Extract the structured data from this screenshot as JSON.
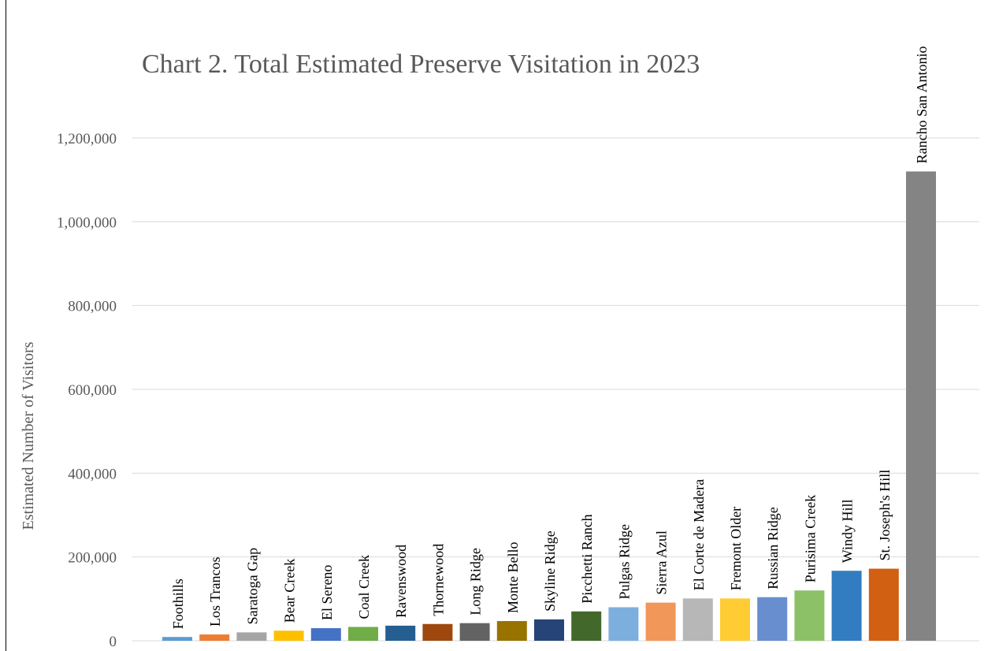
{
  "chart_data": {
    "type": "bar",
    "title": "Chart 2. Total Estimated Preserve Visitation in 2023",
    "ylabel": "Estimated Number of Visitors",
    "xlabel": "",
    "ylim": [
      0,
      1200000
    ],
    "yticks": [
      0,
      200000,
      400000,
      600000,
      800000,
      1000000,
      1200000
    ],
    "ytick_labels": [
      "0",
      "200,000",
      "400,000",
      "600,000",
      "800,000",
      "1,000,000",
      "1,200,000"
    ],
    "grid": true,
    "categories": [
      "Foothills",
      "Los Trancos",
      "Saratoga Gap",
      "Bear Creek",
      "El Sereno",
      "Coal Creek",
      "Ravenswood",
      "Thornewood",
      "Long Ridge",
      "Monte Bello",
      "Skyline Ridge",
      "Picchetti Ranch",
      "Pulgas Ridge",
      "Sierra Azul",
      "El Corte de Madera",
      "Fremont Older",
      "Russian Ridge",
      "Purisima Creek",
      "Windy Hill",
      "St. Joseph's Hill",
      "Rancho San Antonio"
    ],
    "values": [
      9000,
      15000,
      20000,
      24000,
      30000,
      33000,
      36000,
      40000,
      42000,
      47000,
      51000,
      70000,
      80000,
      91000,
      101000,
      101000,
      104000,
      120000,
      167000,
      172000,
      1120000
    ],
    "colors": [
      "#5b9bd5",
      "#ed7d31",
      "#a5a5a5",
      "#ffc000",
      "#4472c4",
      "#70ad47",
      "#255e91",
      "#9e480e",
      "#636363",
      "#997300",
      "#264478",
      "#43682b",
      "#7cafdd",
      "#f1975a",
      "#b7b7b7",
      "#ffcd33",
      "#698ed0",
      "#8cc168",
      "#327dc2",
      "#d26012",
      "#848484"
    ]
  }
}
